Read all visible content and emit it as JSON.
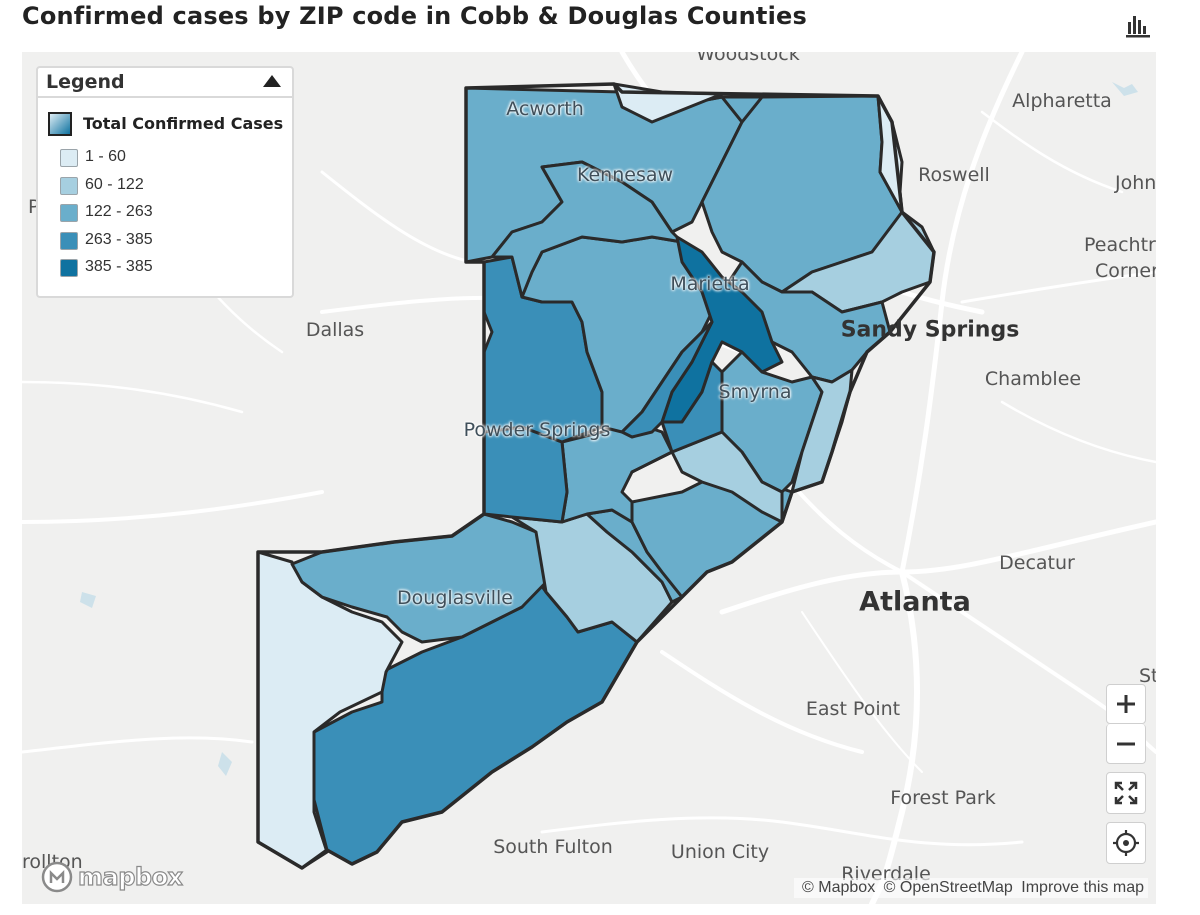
{
  "title": "Confirmed cases by ZIP code in Cobb & Douglas Counties",
  "chart_toggle_icon": "bar-chart-icon",
  "legend": {
    "title": "Legend",
    "toggle_icon": "triangle-up-icon",
    "layer_label": "Total Confirmed Cases",
    "items": [
      {
        "label": "1 - 60",
        "color": "#dcecf4"
      },
      {
        "label": "60 - 122",
        "color": "#a6cfe0"
      },
      {
        "label": "122 - 263",
        "color": "#6aaecb"
      },
      {
        "label": "263 - 385",
        "color": "#3a8fb8"
      },
      {
        "label": "385 - 385",
        "color": "#0f72a0"
      }
    ]
  },
  "places": {
    "woodstock": "Woodstock",
    "acworth": "Acworth",
    "alpharetta": "Alpharetta",
    "kennesaw": "Kennesaw",
    "roswell": "Roswell",
    "johns": "John",
    "peachtree1": "Peachtr",
    "peachtree2": "Corner",
    "marietta": "Marietta",
    "dallas": "Dallas",
    "sandy_springs": "Sandy Springs",
    "chamblee": "Chamblee",
    "smyrna": "Smyrna",
    "powder_springs": "Powder Springs",
    "decatur": "Decatur",
    "douglasville": "Douglasville",
    "atlanta": "Atlanta",
    "st": "St",
    "east_point": "East Point",
    "forest_park": "Forest Park",
    "south_fulton": "South Fulton",
    "union_city": "Union City",
    "riverdale": "Riverdale",
    "carrollton": "rollton",
    "p_left": "P"
  },
  "controls": {
    "zoom_in_icon": "plus-icon",
    "zoom_out_icon": "minus-icon",
    "fullscreen_icon": "fullscreen-icon",
    "locate_icon": "crosshair-icon"
  },
  "mapbox_logo": "mapbox",
  "attribution": {
    "mapbox": "© Mapbox",
    "osm": "© OpenStreetMap",
    "improve": "Improve this map"
  }
}
